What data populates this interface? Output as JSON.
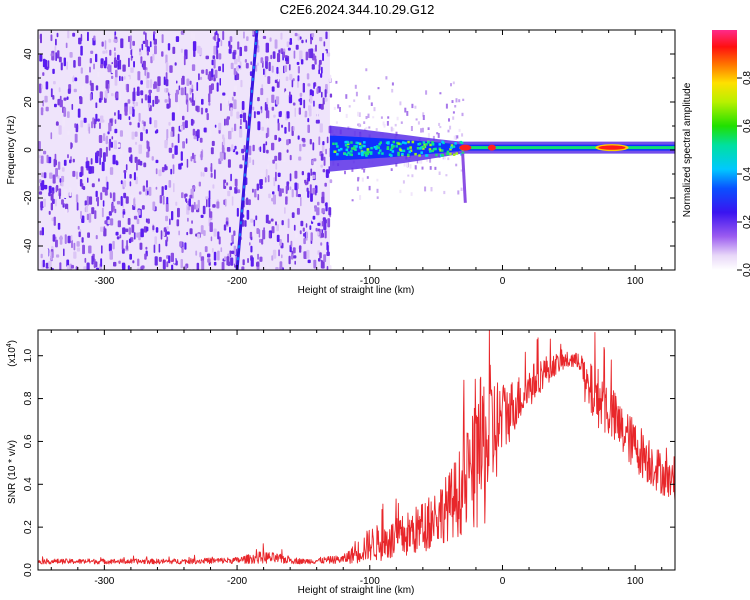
{
  "title": "C2E6.2024.344.10.29.G12",
  "colors": {
    "snr_line": "#e8262a",
    "axis": "#000000",
    "background": "#ffffff"
  },
  "chart_data": [
    {
      "type": "heatmap",
      "name": "spectrogram",
      "xlabel": "Height of straight line (km)",
      "ylabel": "Frequency (Hz)",
      "xlim": [
        -350,
        130
      ],
      "ylim": [
        -50,
        50
      ],
      "xticks": [
        -300,
        -200,
        -100,
        0,
        100
      ],
      "xtick_labels": [
        "-300",
        "-200",
        "-100",
        "0",
        "100"
      ],
      "yticks": [
        -40,
        -20,
        0,
        20,
        40
      ],
      "ytick_labels": [
        "-40",
        "-20",
        "0",
        "20",
        "40"
      ],
      "colorbar": {
        "label": "Normalized spectral amplitude",
        "range": [
          0,
          1
        ],
        "ticks": [
          0.0,
          0.2,
          0.4,
          0.6,
          0.8
        ],
        "tick_labels": [
          "0.0",
          "0.2",
          "0.4",
          "0.6",
          "0.8"
        ]
      },
      "features": {
        "noise_region_x": [
          -350,
          -130
        ],
        "streak_line": {
          "x_at_ymax": -185,
          "x_at_ymin": -200
        },
        "signal_band_center_hz": 1,
        "signal_band_x": [
          -130,
          130
        ],
        "peak_amplitude_x": [
          -35,
          -10,
          70,
          95
        ]
      }
    },
    {
      "type": "line",
      "name": "snr",
      "xlabel": "Height of straight line (km)",
      "ylabel": "SNR (10 * v/v)",
      "y_multiplier_label": "(x10",
      "y_multiplier_exp": "4",
      "y_multiplier_close": ")",
      "xlim": [
        -350,
        130
      ],
      "ylim": [
        0,
        1.12
      ],
      "xticks": [
        -300,
        -200,
        -100,
        0,
        100
      ],
      "xtick_labels": [
        "-300",
        "-200",
        "-100",
        "0",
        "100"
      ],
      "yticks": [
        0.0,
        0.2,
        0.4,
        0.6,
        0.8,
        1.0
      ],
      "ytick_labels": [
        "0.0",
        "0.2",
        "0.4",
        "0.6",
        "0.8",
        "1.0"
      ],
      "envelope": {
        "x": [
          -350,
          -250,
          -200,
          -180,
          -150,
          -120,
          -110,
          -100,
          -80,
          -60,
          -40,
          -30,
          -20,
          -15,
          -10,
          0,
          10,
          20,
          30,
          40,
          50,
          60,
          62,
          70,
          80,
          90,
          100,
          110,
          120,
          130
        ],
        "mid": [
          0.04,
          0.04,
          0.045,
          0.06,
          0.04,
          0.05,
          0.08,
          0.12,
          0.14,
          0.2,
          0.3,
          0.38,
          0.48,
          0.55,
          0.62,
          0.7,
          0.78,
          0.85,
          0.92,
          0.96,
          0.98,
          0.97,
          0.85,
          0.82,
          0.75,
          0.65,
          0.58,
          0.52,
          0.45,
          0.4
        ],
        "amp": [
          0.012,
          0.012,
          0.015,
          0.03,
          0.012,
          0.02,
          0.05,
          0.08,
          0.1,
          0.12,
          0.16,
          0.22,
          0.3,
          0.4,
          0.35,
          0.18,
          0.12,
          0.1,
          0.08,
          0.05,
          0.04,
          0.04,
          0.12,
          0.14,
          0.14,
          0.12,
          0.12,
          0.12,
          0.1,
          0.08
        ]
      }
    }
  ]
}
